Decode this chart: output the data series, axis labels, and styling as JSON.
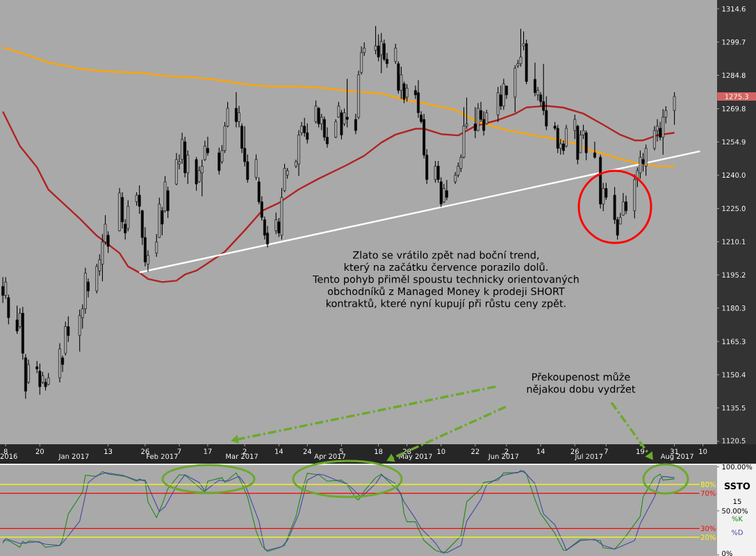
{
  "chart_data": [
    {
      "type": "candlestick",
      "x": [
        "2016-12-07",
        "2016-12-08",
        "2016-12-09",
        "2016-12-12",
        "2016-12-13",
        "2016-12-14",
        "2016-12-15",
        "2016-12-16",
        "2016-12-19",
        "2016-12-20",
        "2016-12-21",
        "2016-12-22",
        "2016-12-23",
        "2016-12-27",
        "2016-12-28",
        "2016-12-29",
        "2016-12-30",
        "2017-01-03",
        "2017-01-04",
        "2017-01-05",
        "2017-01-06",
        "2017-01-09",
        "2017-01-10",
        "2017-01-11",
        "2017-01-12",
        "2017-01-13",
        "2017-01-17",
        "2017-01-18",
        "2017-01-19",
        "2017-01-20",
        "2017-01-23",
        "2017-01-24",
        "2017-01-25",
        "2017-01-26",
        "2017-01-27",
        "2017-01-30",
        "2017-01-31",
        "2017-02-01",
        "2017-02-02",
        "2017-02-03",
        "2017-02-06",
        "2017-02-07",
        "2017-02-08",
        "2017-02-09",
        "2017-02-10",
        "2017-02-13",
        "2017-02-14",
        "2017-02-15",
        "2017-02-16",
        "2017-02-17",
        "2017-02-21",
        "2017-02-22",
        "2017-02-23",
        "2017-02-24",
        "2017-02-27",
        "2017-02-28",
        "2017-03-01",
        "2017-03-02",
        "2017-03-03",
        "2017-03-06",
        "2017-03-07",
        "2017-03-08",
        "2017-03-09",
        "2017-03-10",
        "2017-03-13",
        "2017-03-14",
        "2017-03-15",
        "2017-03-16",
        "2017-03-17",
        "2017-03-20",
        "2017-03-21",
        "2017-03-22",
        "2017-03-23",
        "2017-03-24",
        "2017-03-27",
        "2017-03-28",
        "2017-03-29",
        "2017-03-30",
        "2017-03-31",
        "2017-04-03",
        "2017-04-04",
        "2017-04-05",
        "2017-04-06",
        "2017-04-07",
        "2017-04-10",
        "2017-04-11",
        "2017-04-12",
        "2017-04-13",
        "2017-04-17",
        "2017-04-18",
        "2017-04-19",
        "2017-04-20",
        "2017-04-21",
        "2017-04-24",
        "2017-04-25",
        "2017-04-26",
        "2017-04-27",
        "2017-04-28",
        "2017-05-01",
        "2017-05-02",
        "2017-05-03",
        "2017-05-04",
        "2017-05-05",
        "2017-05-08",
        "2017-05-09",
        "2017-05-10",
        "2017-05-11",
        "2017-05-12",
        "2017-05-15",
        "2017-05-16",
        "2017-05-17",
        "2017-05-18",
        "2017-05-19",
        "2017-05-22",
        "2017-05-23",
        "2017-05-24",
        "2017-05-25",
        "2017-05-26",
        "2017-05-30",
        "2017-05-31",
        "2017-06-01",
        "2017-06-02",
        "2017-06-05",
        "2017-06-06",
        "2017-06-07",
        "2017-06-08",
        "2017-06-09",
        "2017-06-12",
        "2017-06-13",
        "2017-06-14",
        "2017-06-15",
        "2017-06-16",
        "2017-06-19",
        "2017-06-20",
        "2017-06-21",
        "2017-06-22",
        "2017-06-23",
        "2017-06-26",
        "2017-06-27",
        "2017-06-28",
        "2017-06-29",
        "2017-06-30",
        "2017-07-03",
        "2017-07-05",
        "2017-07-06",
        "2017-07-07",
        "2017-07-10",
        "2017-07-11",
        "2017-07-12",
        "2017-07-13",
        "2017-07-14",
        "2017-07-17",
        "2017-07-18",
        "2017-07-19",
        "2017-07-20",
        "2017-07-21",
        "2017-07-24",
        "2017-07-25",
        "2017-07-26",
        "2017-07-27",
        "2017-07-28",
        "2017-07-31"
      ],
      "ohlc": [
        [
          1190,
          1194.2,
          1182.6,
          1186
        ],
        [
          1186,
          1194.2,
          1184.5,
          1192
        ],
        [
          1185,
          1186.3,
          1173,
          1176
        ],
        [
          1175,
          1181.4,
          1168.7,
          1170
        ],
        [
          1172,
          1180.2,
          1171.1,
          1178
        ],
        [
          1178,
          1180.8,
          1157.2,
          1160
        ],
        [
          1158,
          1159.6,
          1139.6,
          1143
        ],
        [
          1147,
          1157.2,
          1146.3,
          1155
        ],
        [
          1154,
          1156.6,
          1151.1,
          1153
        ],
        [
          1152,
          1155.4,
          1141.4,
          1145
        ],
        [
          1147,
          1151.7,
          1146.3,
          1150
        ],
        [
          1147,
          1148.7,
          1143.3,
          1145
        ],
        [
          1146,
          1151.1,
          1145.7,
          1149
        ],
        [
          1149,
          1164.5,
          1146.9,
          1162
        ],
        [
          1158,
          1159,
          1151.7,
          1155
        ],
        [
          1160,
          1174.2,
          1159,
          1172
        ],
        [
          1172,
          1176.6,
          1165.1,
          1168
        ],
        [
          1168,
          1179.6,
          1160.8,
          1177
        ],
        [
          1176,
          1182,
          1171.1,
          1180
        ],
        [
          1180,
          1198.4,
          1177.8,
          1196
        ],
        [
          1192,
          1193.6,
          1185.1,
          1188
        ],
        [
          1188,
          1200.2,
          1186.9,
          1199
        ],
        [
          1197,
          1204.5,
          1194.8,
          1202
        ],
        [
          1200,
          1213.5,
          1192.3,
          1210
        ],
        [
          1210,
          1222,
          1208.7,
          1218
        ],
        [
          1213,
          1214.8,
          1205,
          1208
        ],
        [
          1215,
          1234.2,
          1214.8,
          1232
        ],
        [
          1230,
          1232.3,
          1216,
          1219
        ],
        [
          1218,
          1220.2,
          1211.1,
          1214
        ],
        [
          1216,
          1228.7,
          1214.8,
          1226
        ],
        [
          1228,
          1232.3,
          1226.3,
          1231
        ],
        [
          1231,
          1235.4,
          1222.6,
          1226
        ],
        [
          1224,
          1224.5,
          1208.7,
          1212
        ],
        [
          1212,
          1216.6,
          1199,
          1201
        ],
        [
          1200,
          1206.3,
          1196.6,
          1204
        ],
        [
          1205,
          1213.5,
          1203.3,
          1210
        ],
        [
          1212,
          1229.9,
          1211.7,
          1227
        ],
        [
          1224,
          1225.7,
          1213,
          1218
        ],
        [
          1224,
          1239.6,
          1223.2,
          1237
        ],
        [
          1233,
          1234.8,
          1220.8,
          1224
        ],
        [
          1236,
          1249.9,
          1235.4,
          1247
        ],
        [
          1245,
          1249.3,
          1242.6,
          1246
        ],
        [
          1247,
          1259,
          1245.1,
          1256
        ],
        [
          1255,
          1257.2,
          1239,
          1241
        ],
        [
          1241,
          1251.1,
          1236,
          1249
        ],
        [
          1247,
          1248.1,
          1233,
          1236
        ],
        [
          1237,
          1243.9,
          1236.6,
          1242
        ],
        [
          1241,
          1246.9,
          1230.5,
          1244
        ],
        [
          1247,
          1255.4,
          1246.3,
          1253
        ],
        [
          1252,
          1257.2,
          1248.7,
          1250
        ],
        [
          1250,
          1252.3,
          1240.2,
          1242
        ],
        [
          1246,
          1253.5,
          1245.1,
          1251
        ],
        [
          1251,
          1263.8,
          1249.9,
          1262
        ],
        [
          1262,
          1272.9,
          1261.4,
          1270
        ],
        [
          1270,
          1277.2,
          1261.4,
          1264
        ],
        [
          1264,
          1271.1,
          1261.4,
          1268
        ],
        [
          1262,
          1263.2,
          1249.9,
          1252
        ],
        [
          1252,
          1262,
          1243.9,
          1246
        ],
        [
          1246,
          1249.3,
          1236.6,
          1238
        ],
        [
          1239,
          1249.3,
          1237.8,
          1247
        ],
        [
          1237,
          1239,
          1226.9,
          1228
        ],
        [
          1228,
          1230.5,
          1219.6,
          1221
        ],
        [
          1220,
          1221.4,
          1211.1,
          1213
        ],
        [
          1214,
          1217.2,
          1207.5,
          1209
        ],
        [
          1215,
          1223.2,
          1213.5,
          1220
        ],
        [
          1219,
          1220.8,
          1212.3,
          1214
        ],
        [
          1213,
          1234.2,
          1211.1,
          1230
        ],
        [
          1233,
          1245.1,
          1232.3,
          1243
        ],
        [
          1240,
          1243.2,
          1238.4,
          1242
        ],
        [
          1244,
          1246.9,
          1243.2,
          1246
        ],
        [
          1245,
          1260.2,
          1239.6,
          1258
        ],
        [
          1259,
          1263.8,
          1257.8,
          1262
        ],
        [
          1262,
          1265.7,
          1257.2,
          1259
        ],
        [
          1259,
          1263.2,
          1254.2,
          1256
        ],
        [
          1264,
          1273.5,
          1263.2,
          1271
        ],
        [
          1270,
          1270.5,
          1261.4,
          1263
        ],
        [
          1263,
          1267.5,
          1260.2,
          1266
        ],
        [
          1265,
          1266.3,
          1255.4,
          1257
        ],
        [
          1257,
          1261.4,
          1252.3,
          1254
        ],
        [
          1257,
          1265.1,
          1256.6,
          1264
        ],
        [
          1266,
          1272.9,
          1265.7,
          1271
        ],
        [
          1268,
          1269.3,
          1256,
          1258
        ],
        [
          1263,
          1269.9,
          1262,
          1268
        ],
        [
          1266,
          1283.2,
          1261.4,
          1265
        ],
        [
          1265,
          1267.5,
          1258.4,
          1260
        ],
        [
          1266,
          1286.9,
          1265.1,
          1285
        ],
        [
          1286,
          1297.8,
          1285.1,
          1295
        ],
        [
          1295,
          1299.6,
          1293.5,
          1297
        ],
        [
          1296,
          1306.9,
          1294.2,
          1298
        ],
        [
          1298,
          1303.2,
          1291.1,
          1293
        ],
        [
          1294,
          1303.8,
          1285.7,
          1300
        ],
        [
          1299,
          1300.8,
          1291.1,
          1292
        ],
        [
          1292,
          1294.8,
          1288.1,
          1290
        ],
        [
          1291,
          1299,
          1289.9,
          1297
        ],
        [
          1290,
          1291.1,
          1276.6,
          1278
        ],
        [
          1278,
          1288.7,
          1274.2,
          1285
        ],
        [
          1281,
          1282,
          1272.3,
          1274
        ],
        [
          1275,
          1280.8,
          1273,
          1279
        ],
        [
          1278,
          1280.2,
          1274.2,
          1276
        ],
        [
          1277,
          1282.6,
          1265.7,
          1268
        ],
        [
          1267,
          1268.7,
          1263.2,
          1264
        ],
        [
          1265,
          1267.5,
          1247.5,
          1249
        ],
        [
          1249,
          1251.7,
          1236,
          1238
        ],
        [
          1238,
          1246.3,
          1236.6,
          1244
        ],
        [
          1244,
          1246.3,
          1236.6,
          1238
        ],
        [
          1237,
          1239,
          1225.7,
          1227
        ],
        [
          1228,
          1236,
          1227.5,
          1234
        ],
        [
          1233,
          1237.8,
          1228.7,
          1230
        ],
        [
          1237,
          1241.4,
          1236,
          1240
        ],
        [
          1240,
          1245.7,
          1239,
          1244
        ],
        [
          1243,
          1249.3,
          1241.4,
          1248
        ],
        [
          1248,
          1270.5,
          1247.5,
          1262
        ],
        [
          1262,
          1274.8,
          1260.8,
          1263
        ],
        [
          1263,
          1270.5,
          1256.6,
          1260
        ],
        [
          1260,
          1272.3,
          1259.6,
          1270
        ],
        [
          1269,
          1272.9,
          1263.8,
          1265
        ],
        [
          1265,
          1268.7,
          1257.8,
          1260
        ],
        [
          1263,
          1269.3,
          1262.6,
          1268
        ],
        [
          1267,
          1279.6,
          1263.8,
          1277
        ],
        [
          1276,
          1280.2,
          1269.3,
          1271
        ],
        [
          1271,
          1283.2,
          1269.3,
          1281
        ],
        [
          1280,
          1280.2,
          1274.2,
          1276
        ],
        [
          1275,
          1289.3,
          1268.1,
          1288
        ],
        [
          1289,
          1291.7,
          1288.1,
          1290
        ],
        [
          1290,
          1305.7,
          1288.7,
          1293
        ],
        [
          1298,
          1304.5,
          1296,
          1299
        ],
        [
          1299,
          1300.8,
          1280.8,
          1282
        ],
        [
          1283,
          1290.5,
          1275.4,
          1277
        ],
        [
          1276,
          1279.6,
          1273.5,
          1278
        ],
        [
          1276,
          1277.2,
          1271.1,
          1273
        ],
        [
          1273,
          1289.9,
          1266.9,
          1269
        ],
        [
          1269,
          1275.4,
          1260.2,
          1262
        ],
        [
          1262,
          1263.8,
          1260.2,
          1261
        ],
        [
          1261,
          1262.6,
          1249.9,
          1252
        ],
        [
          1252,
          1256.2,
          1249.2,
          1254
        ],
        [
          1254,
          1255.6,
          1249.2,
          1251
        ],
        [
          1253,
          1262.6,
          1252.4,
          1261
        ],
        [
          1260,
          1267.1,
          1256.2,
          1265
        ],
        [
          1262,
          1262.6,
          1244.8,
          1247
        ],
        [
          1250,
          1260,
          1249.9,
          1258
        ],
        [
          1258,
          1262.6,
          1256.2,
          1260
        ],
        [
          1259,
          1260,
          1246.7,
          1250
        ],
        [
          1250,
          1255,
          1247.3,
          1248
        ],
        [
          1248,
          1249.2,
          1225,
          1227
        ],
        [
          1227,
          1236.5,
          1223.8,
          1234
        ],
        [
          1234,
          1236.5,
          1228.9,
          1230
        ],
        [
          1231,
          1234.6,
          1218,
          1220
        ],
        [
          1220,
          1221.2,
          1211,
          1213
        ],
        [
          1218,
          1223.1,
          1218,
          1221
        ],
        [
          1222,
          1232,
          1221.8,
          1228
        ],
        [
          1228,
          1230.8,
          1222.5,
          1224
        ],
        [
          1224,
          1240.3,
          1220.6,
          1238
        ],
        [
          1238,
          1243.5,
          1234.6,
          1242
        ],
        [
          1241,
          1251.1,
          1238.4,
          1248
        ],
        [
          1247,
          1249.9,
          1241.6,
          1245
        ],
        [
          1244,
          1253.7,
          1239.7,
          1252
        ],
        [
          1252,
          1262,
          1251.1,
          1260
        ],
        [
          1260,
          1265.1,
          1255,
          1262
        ],
        [
          1261,
          1263.9,
          1255.6,
          1257
        ],
        [
          1257,
          1269.6,
          1249.2,
          1266
        ],
        [
          1266,
          1270.9,
          1263.2,
          1269
        ],
        [
          1269,
          1277.2,
          1262.6,
          1275.3
        ]
      ],
      "series": [
        {
          "type": "line",
          "color": "#b22222",
          "x": [
            "2016-12-07",
            "2016-12-13",
            "2016-12-19",
            "2016-12-23",
            "2017-01-03",
            "2017-01-09",
            "2017-01-17",
            "2017-01-20",
            "2017-01-24",
            "2017-01-27",
            "2017-02-01",
            "2017-02-06",
            "2017-02-09",
            "2017-02-13",
            "2017-02-16",
            "2017-02-23",
            "2017-03-02",
            "2017-03-08",
            "2017-03-14",
            "2017-03-21",
            "2017-03-28",
            "2017-04-07",
            "2017-04-13",
            "2017-04-19",
            "2017-04-24",
            "2017-05-01",
            "2017-05-04",
            "2017-05-10",
            "2017-05-16",
            "2017-05-22",
            "2017-05-30",
            "2017-06-05",
            "2017-06-09",
            "2017-06-16",
            "2017-06-22",
            "2017-06-29",
            "2017-07-06",
            "2017-07-12",
            "2017-07-17",
            "2017-07-20",
            "2017-07-25",
            "2017-07-31"
          ],
          "values": [
            1268.5,
            1253,
            1243.5,
            1233.5,
            1220.5,
            1212.8,
            1205,
            1199,
            1196.2,
            1193.4,
            1192,
            1192.6,
            1195.4,
            1197.1,
            1199.6,
            1205.6,
            1215.2,
            1223.9,
            1227.5,
            1233.6,
            1238.4,
            1244.6,
            1248.7,
            1254.6,
            1258.2,
            1260.8,
            1260.8,
            1258.4,
            1257.8,
            1262,
            1264.7,
            1267.5,
            1270.4,
            1271.1,
            1270.3,
            1267.6,
            1262.6,
            1258.1,
            1255.6,
            1255.6,
            1257.9,
            1259
          ]
        },
        {
          "type": "line",
          "color": "#ffa500",
          "x": [
            "2016-12-07",
            "2016-12-09",
            "2016-12-15",
            "2016-12-23",
            "2017-01-04",
            "2017-01-13",
            "2017-01-25",
            "2017-02-02",
            "2017-02-13",
            "2017-02-21",
            "2017-03-02",
            "2017-03-10",
            "2017-03-21",
            "2017-03-29",
            "2017-04-07",
            "2017-04-19",
            "2017-04-26",
            "2017-05-04",
            "2017-05-15",
            "2017-05-23",
            "2017-06-02",
            "2017-06-12",
            "2017-06-21",
            "2017-06-26",
            "2017-06-30",
            "2017-07-07",
            "2017-07-13",
            "2017-07-19",
            "2017-07-25",
            "2017-07-31"
          ],
          "values": [
            1297.2,
            1296.6,
            1294.2,
            1290.5,
            1287.5,
            1286.5,
            1285.9,
            1284.5,
            1283.8,
            1282.6,
            1280.8,
            1279.8,
            1279.8,
            1279.2,
            1277.8,
            1276.6,
            1274.2,
            1272.3,
            1269.3,
            1263.8,
            1260.2,
            1257.8,
            1255.8,
            1254.3,
            1251.8,
            1249.2,
            1246.9,
            1245,
            1244,
            1243.9
          ]
        },
        {
          "type": "line",
          "color": "#ffffff",
          "x": [
            "2017-01-24",
            "2017-08-09"
          ],
          "values": [
            1196.3,
            1250.7
          ]
        }
      ],
      "xlim": [
        "2016-12-06",
        "2017-08-15"
      ],
      "ylim": [
        1119.2,
        1318.6
      ],
      "xticks": [
        {
          "value": "2016-12-08",
          "label": "8"
        },
        {
          "value": "2016-12-20",
          "label": "20"
        },
        {
          "value": "2017-01-13",
          "label": "13"
        },
        {
          "value": "2017-01-26",
          "label": "26"
        },
        {
          "value": "2017-02-07",
          "label": "7"
        },
        {
          "value": "2017-02-17",
          "label": "17"
        },
        {
          "value": "2017-03-02",
          "label": "2"
        },
        {
          "value": "2017-03-14",
          "label": "14"
        },
        {
          "value": "2017-03-24",
          "label": "24"
        },
        {
          "value": "2017-04-05",
          "label": "5"
        },
        {
          "value": "2017-04-18",
          "label": "18"
        },
        {
          "value": "2017-04-28",
          "label": "28"
        },
        {
          "value": "2017-05-10",
          "label": "10"
        },
        {
          "value": "2017-05-22",
          "label": "22"
        },
        {
          "value": "2017-06-02",
          "label": "2"
        },
        {
          "value": "2017-06-14",
          "label": "14"
        },
        {
          "value": "2017-06-26",
          "label": "26"
        },
        {
          "value": "2017-07-07",
          "label": "7"
        },
        {
          "value": "2017-07-19",
          "label": "19"
        },
        {
          "value": "2017-07-31",
          "label": "31"
        },
        {
          "value": "2017-08-10",
          "label": "10"
        }
      ],
      "x2lim": [
        "2016-12-06",
        "2017-08-15"
      ],
      "x2ticks": [
        {
          "value": "2016-12-08",
          "label": "2016"
        },
        {
          "value": "2017-01-01",
          "label": "Jan 2017"
        },
        {
          "value": "2017-02-01",
          "label": "Feb 2017"
        },
        {
          "value": "2017-03-01",
          "label": "Mar 2017"
        },
        {
          "value": "2017-04-01",
          "label": "Apr 2017"
        },
        {
          "value": "2017-05-01",
          "label": "May 2017"
        },
        {
          "value": "2017-06-01",
          "label": "Jun 2017"
        },
        {
          "value": "2017-07-01",
          "label": "Jul 2017"
        },
        {
          "value": "2017-08-01",
          "label": "Aug 2017"
        }
      ],
      "yticks": [
        1120.5,
        1135.5,
        1150.4,
        1165.3,
        1180.3,
        1195.2,
        1210.1,
        {
          "value": 1225,
          "label": "1225.0"
        },
        {
          "value": 1240,
          "label": "1240.0"
        },
        1254.9,
        1269.8,
        1284.8,
        1299.7,
        1314.6
      ],
      "annotations": [
        "Zlato se vrátilo zpět nad boční trend, který na začátku července porazilo dolů.",
        "Tento pohyb přiměl spoustu technicky orientovaných obchodníků z Managed Money k prodeji SHORT kontraktů, které nyní kupují při růstu ceny zpět.",
        "Překoupenost může nějakou dobu vydržet",
        "1275.3"
      ]
    },
    {
      "type": "line",
      "title": "SSTO",
      "subtitle": "15",
      "legend": "right",
      "tick_labels": "y",
      "series": [
        {
          "name": "%K",
          "color": "#1a8a1a",
          "x": [
            "2016-12-07",
            "2016-12-09",
            "2016-12-13",
            "2016-12-14",
            "2016-12-15",
            "2016-12-16",
            "2016-12-20",
            "2016-12-22",
            "2016-12-27",
            "2016-12-28",
            "2016-12-30",
            "2017-01-04",
            "2017-01-05",
            "2017-01-09",
            "2017-01-11",
            "2017-01-13",
            "2017-01-19",
            "2017-01-23",
            "2017-01-24",
            "2017-01-26",
            "2017-01-27",
            "2017-01-30",
            "2017-02-01",
            "2017-02-03",
            "2017-02-07",
            "2017-02-09",
            "2017-02-14",
            "2017-02-16",
            "2017-02-17",
            "2017-02-22",
            "2017-02-23",
            "2017-02-27",
            "2017-03-01",
            "2017-03-03",
            "2017-03-06",
            "2017-03-08",
            "2017-03-10",
            "2017-03-14",
            "2017-03-16",
            "2017-03-20",
            "2017-03-22",
            "2017-03-24",
            "2017-03-28",
            "2017-03-31",
            "2017-04-05",
            "2017-04-07",
            "2017-04-10",
            "2017-04-11",
            "2017-04-13",
            "2017-04-17",
            "2017-04-19",
            "2017-04-21",
            "2017-04-26",
            "2017-04-27",
            "2017-04-28",
            "2017-05-01",
            "2017-05-02",
            "2017-05-04",
            "2017-05-08",
            "2017-05-11",
            "2017-05-12",
            "2017-05-17",
            "2017-05-19",
            "2017-05-24",
            "2017-05-25",
            "2017-05-30",
            "2017-06-01",
            "2017-06-06",
            "2017-06-07",
            "2017-06-09",
            "2017-06-12",
            "2017-06-14",
            "2017-06-15",
            "2017-06-19",
            "2017-06-22",
            "2017-06-23",
            "2017-06-28",
            "2017-06-30",
            "2017-07-05",
            "2017-07-06",
            "2017-07-10",
            "2017-07-12",
            "2017-07-14",
            "2017-07-19",
            "2017-07-20",
            "2017-07-24",
            "2017-07-26",
            "2017-07-27",
            "2017-07-31"
          ],
          "values": [
            16.2,
            16.2,
            8.5,
            15.6,
            12.9,
            15.6,
            14.8,
            8.5,
            10.7,
            17.6,
            46.5,
            71.2,
            90.5,
            89.1,
            94.6,
            91.8,
            89.1,
            83.6,
            86.3,
            83.6,
            60.2,
            42.3,
            57.5,
            75.3,
            91,
            90.5,
            76.7,
            71.2,
            83.6,
            87.7,
            82.2,
            93.2,
            80.8,
            65.7,
            27.2,
            10.7,
            3.8,
            8,
            10.7,
            43.7,
            71.2,
            92.6,
            91,
            83.6,
            84.9,
            79.5,
            64.3,
            62.4,
            72.6,
            87.7,
            91.8,
            84.9,
            69.8,
            46.5,
            37.6,
            37.6,
            29.9,
            16.2,
            5.2,
            1.9,
            5.2,
            21.7,
            60.2,
            75.3,
            82.2,
            84.9,
            93.2,
            93.2,
            96,
            91.8,
            62.9,
            46.5,
            42.3,
            24.4,
            5.2,
            5.2,
            17.6,
            17.6,
            16.2,
            8,
            6.6,
            13.5,
            21.7,
            43.7,
            65.7,
            87.7,
            91.8,
            84.9,
            86.3
          ]
        },
        {
          "name": "%D",
          "color": "#4646a8",
          "x": [
            "2016-12-07",
            "2016-12-08",
            "2016-12-13",
            "2016-12-19",
            "2016-12-22",
            "2016-12-27",
            "2016-12-29",
            "2017-01-03",
            "2017-01-06",
            "2017-01-09",
            "2017-01-12",
            "2017-01-18",
            "2017-01-23",
            "2017-01-26",
            "2017-01-27",
            "2017-01-31",
            "2017-02-02",
            "2017-02-06",
            "2017-02-09",
            "2017-02-14",
            "2017-02-16",
            "2017-02-21",
            "2017-02-24",
            "2017-02-28",
            "2017-03-02",
            "2017-03-07",
            "2017-03-09",
            "2017-03-10",
            "2017-03-15",
            "2017-03-17",
            "2017-03-21",
            "2017-03-24",
            "2017-03-28",
            "2017-03-30",
            "2017-04-04",
            "2017-04-07",
            "2017-04-11",
            "2017-04-12",
            "2017-04-17",
            "2017-04-19",
            "2017-04-24",
            "2017-04-27",
            "2017-05-01",
            "2017-05-03",
            "2017-05-08",
            "2017-05-10",
            "2017-05-12",
            "2017-05-17",
            "2017-05-19",
            "2017-05-24",
            "2017-05-26",
            "2017-06-01",
            "2017-06-06",
            "2017-06-08",
            "2017-06-12",
            "2017-06-15",
            "2017-06-19",
            "2017-06-22",
            "2017-06-23",
            "2017-06-28",
            "2017-07-03",
            "2017-07-06",
            "2017-07-10",
            "2017-07-12",
            "2017-07-17",
            "2017-07-19",
            "2017-07-24",
            "2017-07-26",
            "2017-07-27",
            "2017-07-31"
          ],
          "values": [
            13.4,
            18.4,
            12.9,
            14.8,
            12.1,
            10.7,
            17.6,
            38.2,
            82.2,
            89.9,
            93.2,
            90.5,
            84.9,
            84.9,
            78.1,
            49.2,
            54.7,
            78.1,
            91,
            82.2,
            72.6,
            84.9,
            83.6,
            89.1,
            80.8,
            38.2,
            6.6,
            5.2,
            9.3,
            16.2,
            46.5,
            84.9,
            91.8,
            90.5,
            83.6,
            80.8,
            68.4,
            65.7,
            80.8,
            90.5,
            80.8,
            60.2,
            41,
            29.9,
            13.5,
            3.8,
            2.4,
            10.7,
            38.2,
            62.9,
            79.5,
            90.5,
            93.8,
            95.4,
            80.8,
            46.5,
            34.1,
            13.5,
            5.2,
            16.2,
            17.6,
            10.7,
            6.6,
            9.3,
            16.2,
            35.5,
            65.7,
            86.3,
            89.1,
            87.7
          ]
        }
      ],
      "xlim": [
        "2016-12-06",
        "2017-08-15"
      ],
      "ylim": [
        -1.3,
        102
      ],
      "yticks": [
        {
          "value": 100,
          "label": "100.00%"
        },
        {
          "value": 50,
          "label": "50.00%"
        },
        {
          "value": 0,
          "label": "0%"
        }
      ],
      "ref_lines": [
        {
          "axis": "y",
          "value": 80,
          "label": "80%",
          "color": "#ffff00"
        },
        {
          "axis": "y",
          "value": 70,
          "label": "70%",
          "color": "#ff0000"
        },
        {
          "axis": "y",
          "value": 30,
          "label": "30%",
          "color": "#ff0000"
        },
        {
          "axis": "y",
          "value": 20,
          "label": "20%",
          "color": "#ffff00"
        }
      ]
    }
  ]
}
